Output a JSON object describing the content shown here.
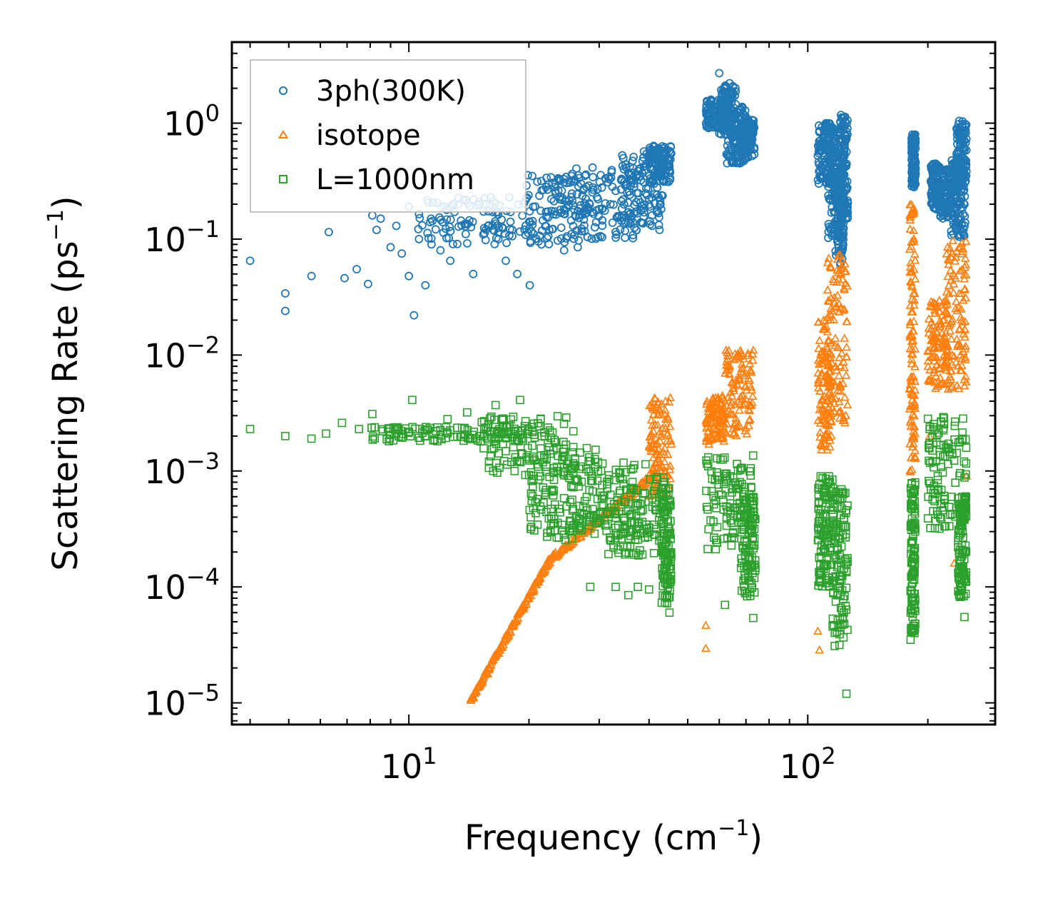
{
  "chart_data": {
    "type": "scatter",
    "title": "",
    "xlabel": "Frequency (cm",
    "xlabel_sup": "−1",
    "xlabel_end": ")",
    "ylabel": "Scattering Rate (ps",
    "ylabel_sup": "−1",
    "ylabel_end": ")",
    "xscale": "log",
    "yscale": "log",
    "xlim": [
      3.6,
      295
    ],
    "ylim": [
      6.5e-06,
      5
    ],
    "x_ticks": [
      {
        "value": 10,
        "base": "10",
        "exp": "1"
      },
      {
        "value": 100,
        "base": "10",
        "exp": "2"
      }
    ],
    "y_ticks": [
      {
        "value": 1,
        "base": "10",
        "exp": "0"
      },
      {
        "value": 0.1,
        "base": "10",
        "exp": "−1"
      },
      {
        "value": 0.01,
        "base": "10",
        "exp": "−2"
      },
      {
        "value": 0.001,
        "base": "10",
        "exp": "−3"
      },
      {
        "value": 0.0001,
        "base": "10",
        "exp": "−4"
      },
      {
        "value": 1e-05,
        "base": "10",
        "exp": "−5"
      }
    ],
    "legend_position": "top-left",
    "series": [
      {
        "name": "3ph(300K)",
        "marker": "circle",
        "color": "#1f77b4",
        "points": [
          [
            4,
            0.065
          ],
          [
            4.9,
            0.034
          ],
          [
            4.9,
            0.024
          ],
          [
            5.7,
            0.048
          ],
          [
            6.3,
            0.115
          ],
          [
            6.9,
            0.046
          ],
          [
            7.4,
            0.055
          ],
          [
            7.9,
            0.041
          ],
          [
            8.1,
            0.16
          ],
          [
            8.3,
            0.12
          ],
          [
            8.5,
            0.15
          ],
          [
            9.0,
            0.085
          ],
          [
            9.3,
            0.13
          ],
          [
            9.6,
            0.075
          ],
          [
            10.0,
            0.19
          ],
          [
            10.0,
            0.048
          ],
          [
            10.3,
            0.022
          ],
          [
            10.6,
            0.1
          ],
          [
            11.0,
            0.04
          ],
          [
            11.4,
            0.09
          ],
          [
            12.0,
            0.08
          ],
          [
            12.7,
            0.065
          ],
          [
            13.3,
            0.2
          ],
          [
            14.5,
            0.05
          ],
          [
            15.0,
            0.21
          ],
          [
            16.0,
            0.2
          ],
          [
            17.5,
            0.065
          ],
          [
            18.7,
            0.05
          ],
          [
            20.1,
            0.04
          ],
          [
            20.5,
            0.19
          ],
          [
            21.5,
            0.09
          ],
          [
            22.5,
            0.12
          ],
          [
            24.5,
            0.08
          ],
          [
            26.5,
            0.085
          ],
          [
            29.5,
            0.14
          ],
          [
            32.0,
            0.2
          ],
          [
            35.0,
            0.3
          ],
          [
            38.0,
            0.35
          ],
          [
            40.0,
            0.22
          ],
          [
            42.5,
            0.12
          ],
          [
            57.0,
            1.3
          ],
          [
            60.0,
            2.7
          ],
          [
            63.0,
            1.5
          ],
          [
            64.5,
            0.6
          ],
          [
            67.5,
            0.45
          ],
          [
            70.0,
            0.5
          ],
          [
            73.0,
            0.9
          ]
        ],
        "clusters": [
          {
            "x": [
              10.5,
              20.5
            ],
            "y": [
              0.09,
              0.23
            ]
          },
          {
            "x": [
              19.5,
              30.0
            ],
            "y": [
              0.09,
              0.36
            ]
          },
          {
            "x": [
              22.0,
              38.0
            ],
            "y": [
              0.1,
              0.42
            ]
          },
          {
            "x": [
              34.0,
              43.5
            ],
            "y": [
              0.13,
              0.6
            ]
          },
          {
            "x": [
              40.0,
              45.5
            ],
            "y": [
              0.3,
              0.65
            ]
          },
          {
            "x": [
              55.5,
              62.0
            ],
            "y": [
              0.9,
              1.6
            ]
          },
          {
            "x": [
              60.0,
              66.0
            ],
            "y": [
              0.8,
              2.3
            ]
          },
          {
            "x": [
              62.0,
              70.0
            ],
            "y": [
              0.45,
              1.4
            ]
          },
          {
            "x": [
              68.0,
              73.5
            ],
            "y": [
              0.5,
              1.1
            ]
          },
          {
            "x": [
              106.0,
              116.0
            ],
            "y": [
              0.3,
              1.0
            ]
          },
          {
            "x": [
              112.0,
              121.0
            ],
            "y": [
              0.1,
              0.9
            ]
          },
          {
            "x": [
              117.0,
              123.0
            ],
            "y": [
              0.06,
              0.5
            ]
          },
          {
            "x": [
              120.0,
              126.0
            ],
            "y": [
              0.15,
              1.2
            ]
          },
          {
            "x": [
              182.0,
              186.5
            ],
            "y": [
              0.28,
              0.8
            ]
          },
          {
            "x": [
              203.0,
              215.0
            ],
            "y": [
              0.18,
              0.45
            ]
          },
          {
            "x": [
              213.0,
              232.0
            ],
            "y": [
              0.15,
              0.4
            ]
          },
          {
            "x": [
              228.0,
              248.0
            ],
            "y": [
              0.1,
              0.5
            ]
          },
          {
            "x": [
              236.0,
              250.0
            ],
            "y": [
              0.3,
              1.05
            ]
          }
        ]
      },
      {
        "name": "isotope",
        "marker": "triangle",
        "color": "#ff7f0e",
        "points": [
          [
            14.3,
            1.05e-05
          ],
          [
            42.0,
            0.0012
          ],
          [
            44.0,
            0.004
          ],
          [
            55.5,
            4.65e-05
          ],
          [
            55.5,
            2.95e-05
          ],
          [
            56.5,
            0.0017
          ],
          [
            73.0,
            0.011
          ],
          [
            106.0,
            4.15e-05
          ],
          [
            107.0,
            2.85e-05
          ],
          [
            112.0,
            0.0089
          ],
          [
            124.0,
            0.0026
          ],
          [
            181.0,
            0.00098
          ],
          [
            202.0,
            0.002
          ],
          [
            233.0,
            0.00016
          ],
          [
            248.0,
            0.00013
          ],
          [
            250.0,
            0.0009
          ]
        ],
        "curves": [
          {
            "x0": 14.3,
            "y0": 1.05e-05,
            "x1": 22.5,
            "y1": 0.00017
          },
          {
            "x0": 22.5,
            "y0": 0.00017,
            "x1": 41.5,
            "y1": 0.00095
          }
        ],
        "clusters": [
          {
            "x": [
              40.0,
              45.5
            ],
            "y": [
              0.0006,
              0.0044
            ]
          },
          {
            "x": [
              55.5,
              62.0
            ],
            "y": [
              0.0018,
              0.0045
            ]
          },
          {
            "x": [
              62.0,
              73.0
            ],
            "y": [
              0.002,
              0.011
            ]
          },
          {
            "x": [
              106.0,
              115.0
            ],
            "y": [
              0.0015,
              0.02
            ]
          },
          {
            "x": [
              112.0,
              126.0
            ],
            "y": [
              0.0025,
              0.075
            ]
          },
          {
            "x": [
              180.0,
              186.0
            ],
            "y": [
              0.001,
              0.2
            ]
          },
          {
            "x": [
              200.0,
              225.0
            ],
            "y": [
              0.005,
              0.03
            ]
          },
          {
            "x": [
              222.0,
              250.0
            ],
            "y": [
              0.005,
              0.1
            ]
          }
        ]
      },
      {
        "name": "L=1000nm",
        "marker": "square",
        "color": "#2ca02c",
        "points": [
          [
            4.0,
            0.0023
          ],
          [
            4.9,
            0.002
          ],
          [
            5.7,
            0.0019
          ],
          [
            6.2,
            0.0021
          ],
          [
            6.8,
            0.0026
          ],
          [
            7.5,
            0.0023
          ],
          [
            8.1,
            0.0031
          ],
          [
            10.2,
            0.0041
          ],
          [
            12.5,
            0.0028
          ],
          [
            14.0,
            0.0032
          ],
          [
            16.5,
            0.0037
          ],
          [
            19.0,
            0.0041
          ],
          [
            20.5,
            0.00048
          ],
          [
            23.0,
            0.00035
          ],
          [
            28.5,
            0.0001
          ],
          [
            33.0,
            0.0001
          ],
          [
            35.5,
            8.5e-05
          ],
          [
            37.5,
            0.0001
          ],
          [
            40.0,
            9.5e-05
          ],
          [
            45.0,
            6e-05
          ],
          [
            62.0,
            7e-05
          ],
          [
            73.0,
            5.4e-05
          ],
          [
            113.0,
            0.0009
          ],
          [
            125.0,
            1.2e-05
          ],
          [
            181.0,
            3.5e-05
          ],
          [
            247.0,
            5.5e-05
          ]
        ],
        "clusters": [
          {
            "x": [
              8.0,
              20.0
            ],
            "y": [
              0.0018,
              0.0024
            ]
          },
          {
            "x": [
              15.0,
              26.0
            ],
            "y": [
              0.0009,
              0.003
            ]
          },
          {
            "x": [
              20.0,
              30.0
            ],
            "y": [
              0.00025,
              0.0022
            ]
          },
          {
            "x": [
              25.0,
              40.0
            ],
            "y": [
              0.00025,
              0.0012
            ]
          },
          {
            "x": [
              30.0,
              45.0
            ],
            "y": [
              0.00018,
              0.0009
            ]
          },
          {
            "x": [
              43.0,
              45.5
            ],
            "y": [
              7e-05,
              0.0008
            ]
          },
          {
            "x": [
              55.5,
              73.0
            ],
            "y": [
              0.0002,
              0.0014
            ]
          },
          {
            "x": [
              68.0,
              74.0
            ],
            "y": [
              8e-05,
              0.0006
            ]
          },
          {
            "x": [
              106.0,
              116.0
            ],
            "y": [
              0.0001,
              0.0009
            ]
          },
          {
            "x": [
              115.0,
              126.0
            ],
            "y": [
              3e-05,
              0.0007
            ]
          },
          {
            "x": [
              181.0,
              186.0
            ],
            "y": [
              4e-05,
              0.0008
            ]
          },
          {
            "x": [
              200.0,
              250.0
            ],
            "y": [
              0.0003,
              0.003
            ]
          },
          {
            "x": [
              238.0,
              250.0
            ],
            "y": [
              8e-05,
              0.0006
            ]
          }
        ]
      }
    ]
  }
}
